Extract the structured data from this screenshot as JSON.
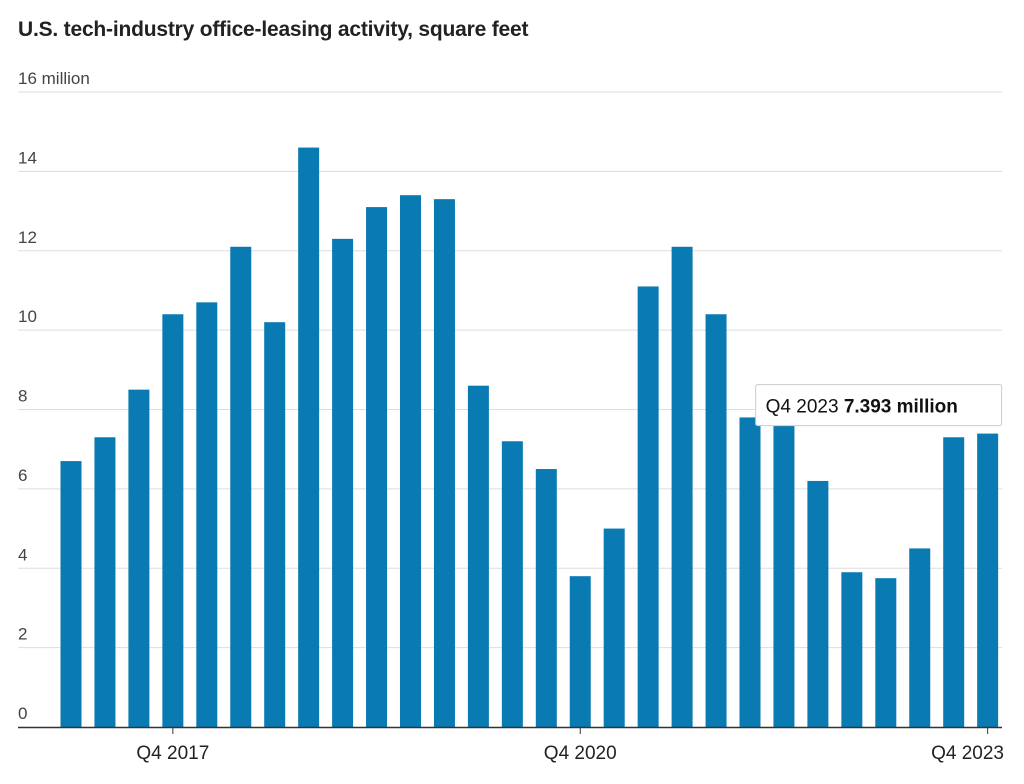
{
  "chart_data": {
    "type": "bar",
    "title": "U.S. tech-industry office-leasing activity, square feet",
    "xlabel": "",
    "ylabel": "",
    "ylim": [
      0,
      16
    ],
    "y_ticks": [
      "0",
      "2",
      "4",
      "6",
      "8",
      "10",
      "12",
      "14",
      "16 million"
    ],
    "x_tick_labels": [
      {
        "category_index": 3,
        "label": "Q4 2017"
      },
      {
        "category_index": 15,
        "label": "Q4 2020"
      },
      {
        "category_index": 27,
        "label": "Q4 2023"
      }
    ],
    "categories": [
      "Q1 2017",
      "Q2 2017",
      "Q3 2017",
      "Q4 2017",
      "Q1 2018",
      "Q2 2018",
      "Q3 2018",
      "Q4 2018",
      "Q1 2019",
      "Q2 2019",
      "Q3 2019",
      "Q4 2019",
      "Q1 2020",
      "Q2 2020",
      "Q3 2020",
      "Q4 2020",
      "Q1 2021",
      "Q2 2021",
      "Q3 2021",
      "Q4 2021",
      "Q1 2022",
      "Q2 2022",
      "Q3 2022",
      "Q4 2022",
      "Q1 2023",
      "Q2 2023",
      "Q3 2023",
      "Q4 2023"
    ],
    "values": [
      6.7,
      7.3,
      8.5,
      10.4,
      10.7,
      12.1,
      10.2,
      14.6,
      12.3,
      13.1,
      13.4,
      13.3,
      8.6,
      7.2,
      6.5,
      3.8,
      5.0,
      11.1,
      12.1,
      10.4,
      7.8,
      7.8,
      6.2,
      3.9,
      3.75,
      4.5,
      7.3,
      7.393
    ],
    "grid": true,
    "colors": {
      "bar": "#0a7ab2",
      "grid": "#dddddd",
      "axis": "#333333"
    },
    "tooltip": {
      "label": "Q4 2023",
      "value": "7.393 million",
      "category_index": 27
    }
  }
}
